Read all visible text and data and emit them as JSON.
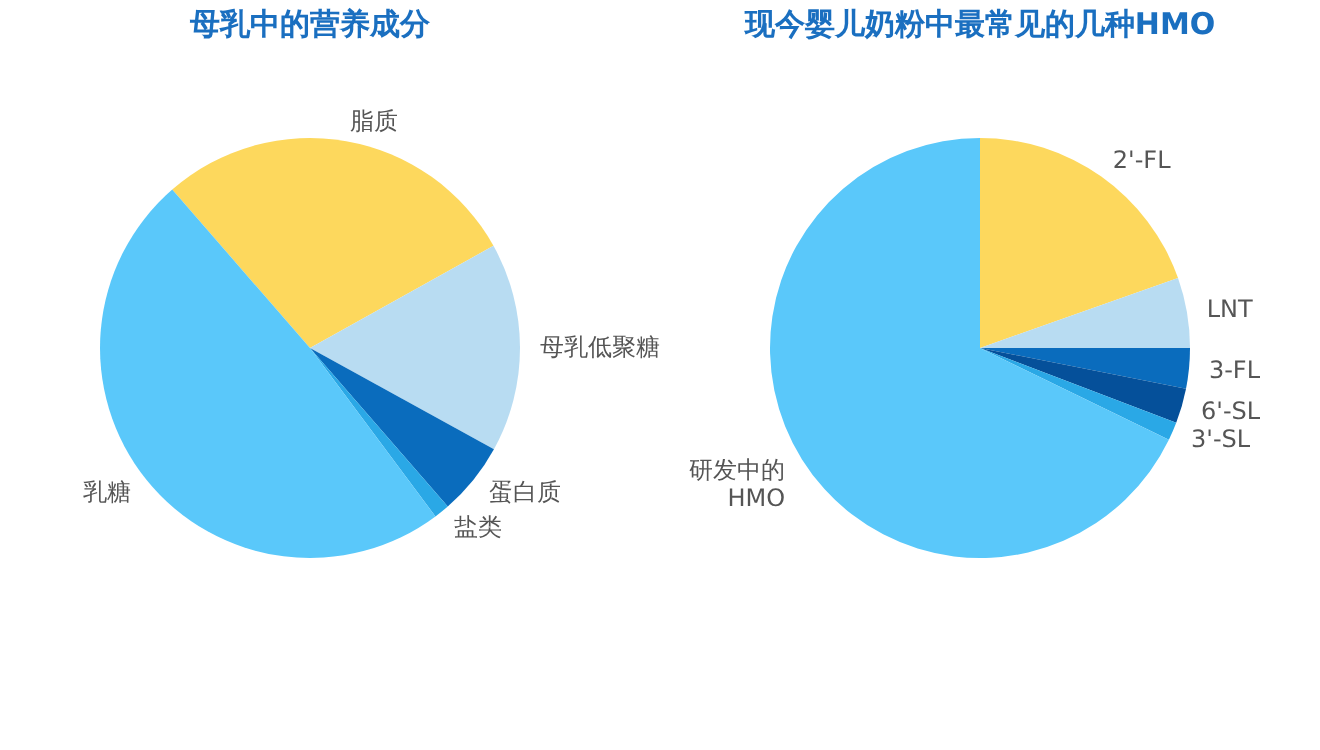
{
  "chart_data": [
    {
      "type": "pie",
      "title": "母乳中的营养成分",
      "categories": [
        "脂质",
        "母乳低聚糖",
        "蛋白质",
        "盐类",
        "乳糖"
      ],
      "values": [
        28.3,
        16.1,
        5.6,
        1.2,
        48.8
      ],
      "colors": [
        "#fdd85d",
        "#b8dcf2",
        "#0a6cbd",
        "#2aa8e6",
        "#5ac8fa"
      ]
    },
    {
      "type": "pie",
      "title": "现今婴儿奶粉中最常见的几种HMO",
      "categories": [
        "2'-FL",
        "LNT",
        "3-FL",
        "6'-SL",
        "3'-SL",
        "研发中的\nHMO"
      ],
      "values": [
        19.6,
        5.4,
        3.1,
        2.7,
        1.4,
        67.8
      ],
      "colors": [
        "#fdd85d",
        "#b8dcf2",
        "#0a6cbd",
        "#05509a",
        "#2aa8e6",
        "#5ac8fa"
      ]
    }
  ]
}
